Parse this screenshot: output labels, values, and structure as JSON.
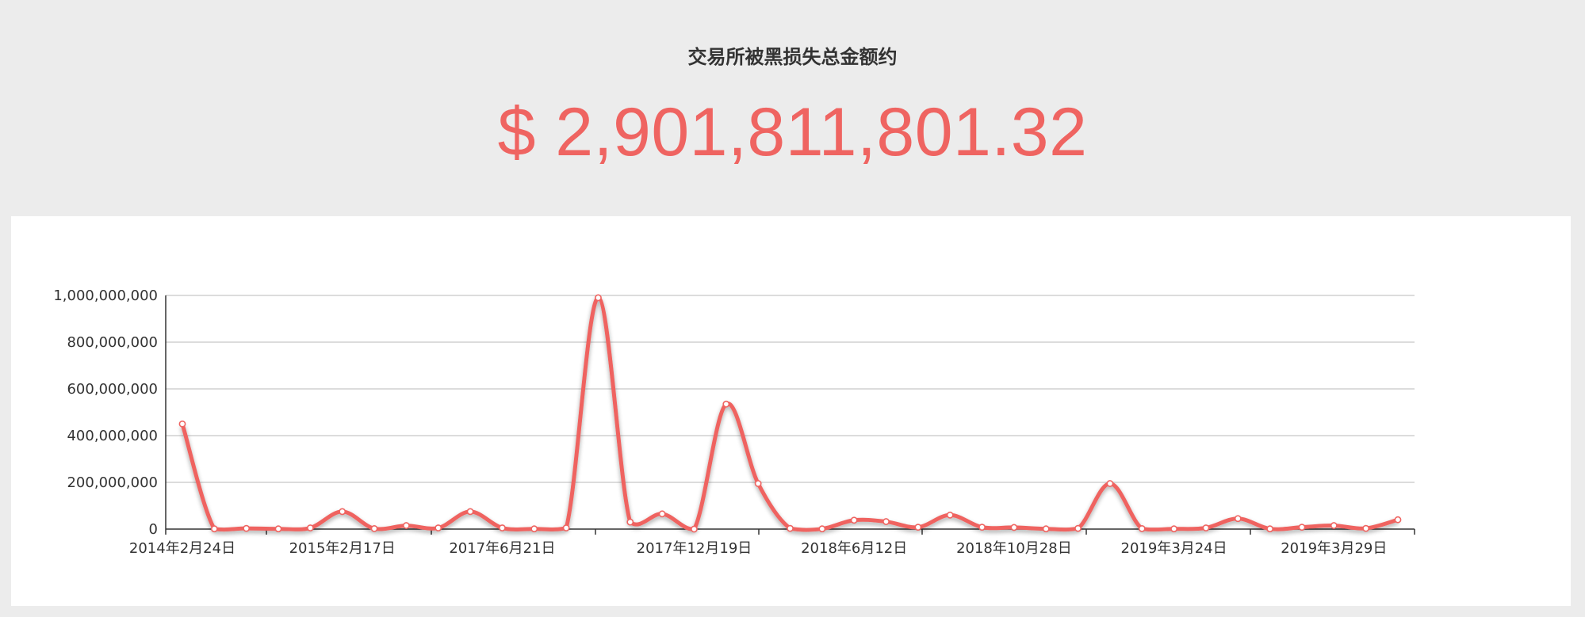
{
  "header": {
    "subtitle": "交易所被黑损失总金额约",
    "total": "$ 2,901,811,801.32"
  },
  "colors": {
    "line": "#ef6461",
    "accent": "#ef6461",
    "grid": "#c8c8c8"
  },
  "chart_data": {
    "type": "line",
    "smooth": true,
    "title": "",
    "xlabel": "",
    "ylabel": "",
    "ylim": [
      0,
      1000000000
    ],
    "yticks": [
      0,
      200000000,
      400000000,
      600000000,
      800000000,
      1000000000
    ],
    "ytick_labels": [
      "0",
      "200,000,000",
      "400,000,000",
      "600,000,000",
      "800,000,000",
      "1,000,000,000"
    ],
    "grid": true,
    "legend": "none",
    "xtick_labels": [
      {
        "index": 0,
        "label": "2014年2月24日"
      },
      {
        "index": 5,
        "label": "2015年2月17日"
      },
      {
        "index": 10,
        "label": "2017年6月21日"
      },
      {
        "index": 16,
        "label": "2017年12月19日"
      },
      {
        "index": 21,
        "label": "2018年6月12日"
      },
      {
        "index": 26,
        "label": "2018年10月28日"
      },
      {
        "index": 31,
        "label": "2019年3月24日"
      },
      {
        "index": 36,
        "label": "2019年3月29日"
      }
    ],
    "values": [
      450000000,
      1000000,
      3000000,
      1000000,
      5000000,
      75000000,
      2000000,
      15000000,
      5000000,
      75000000,
      5000000,
      1000000,
      5000000,
      990000000,
      30000000,
      65000000,
      0,
      535000000,
      195000000,
      3000000,
      1000000,
      38000000,
      32000000,
      8000000,
      60000000,
      8000000,
      7000000,
      1000000,
      3000000,
      195000000,
      2000000,
      1000000,
      5000000,
      45000000,
      1000000,
      8000000,
      15000000,
      3000000,
      40000000
    ]
  }
}
